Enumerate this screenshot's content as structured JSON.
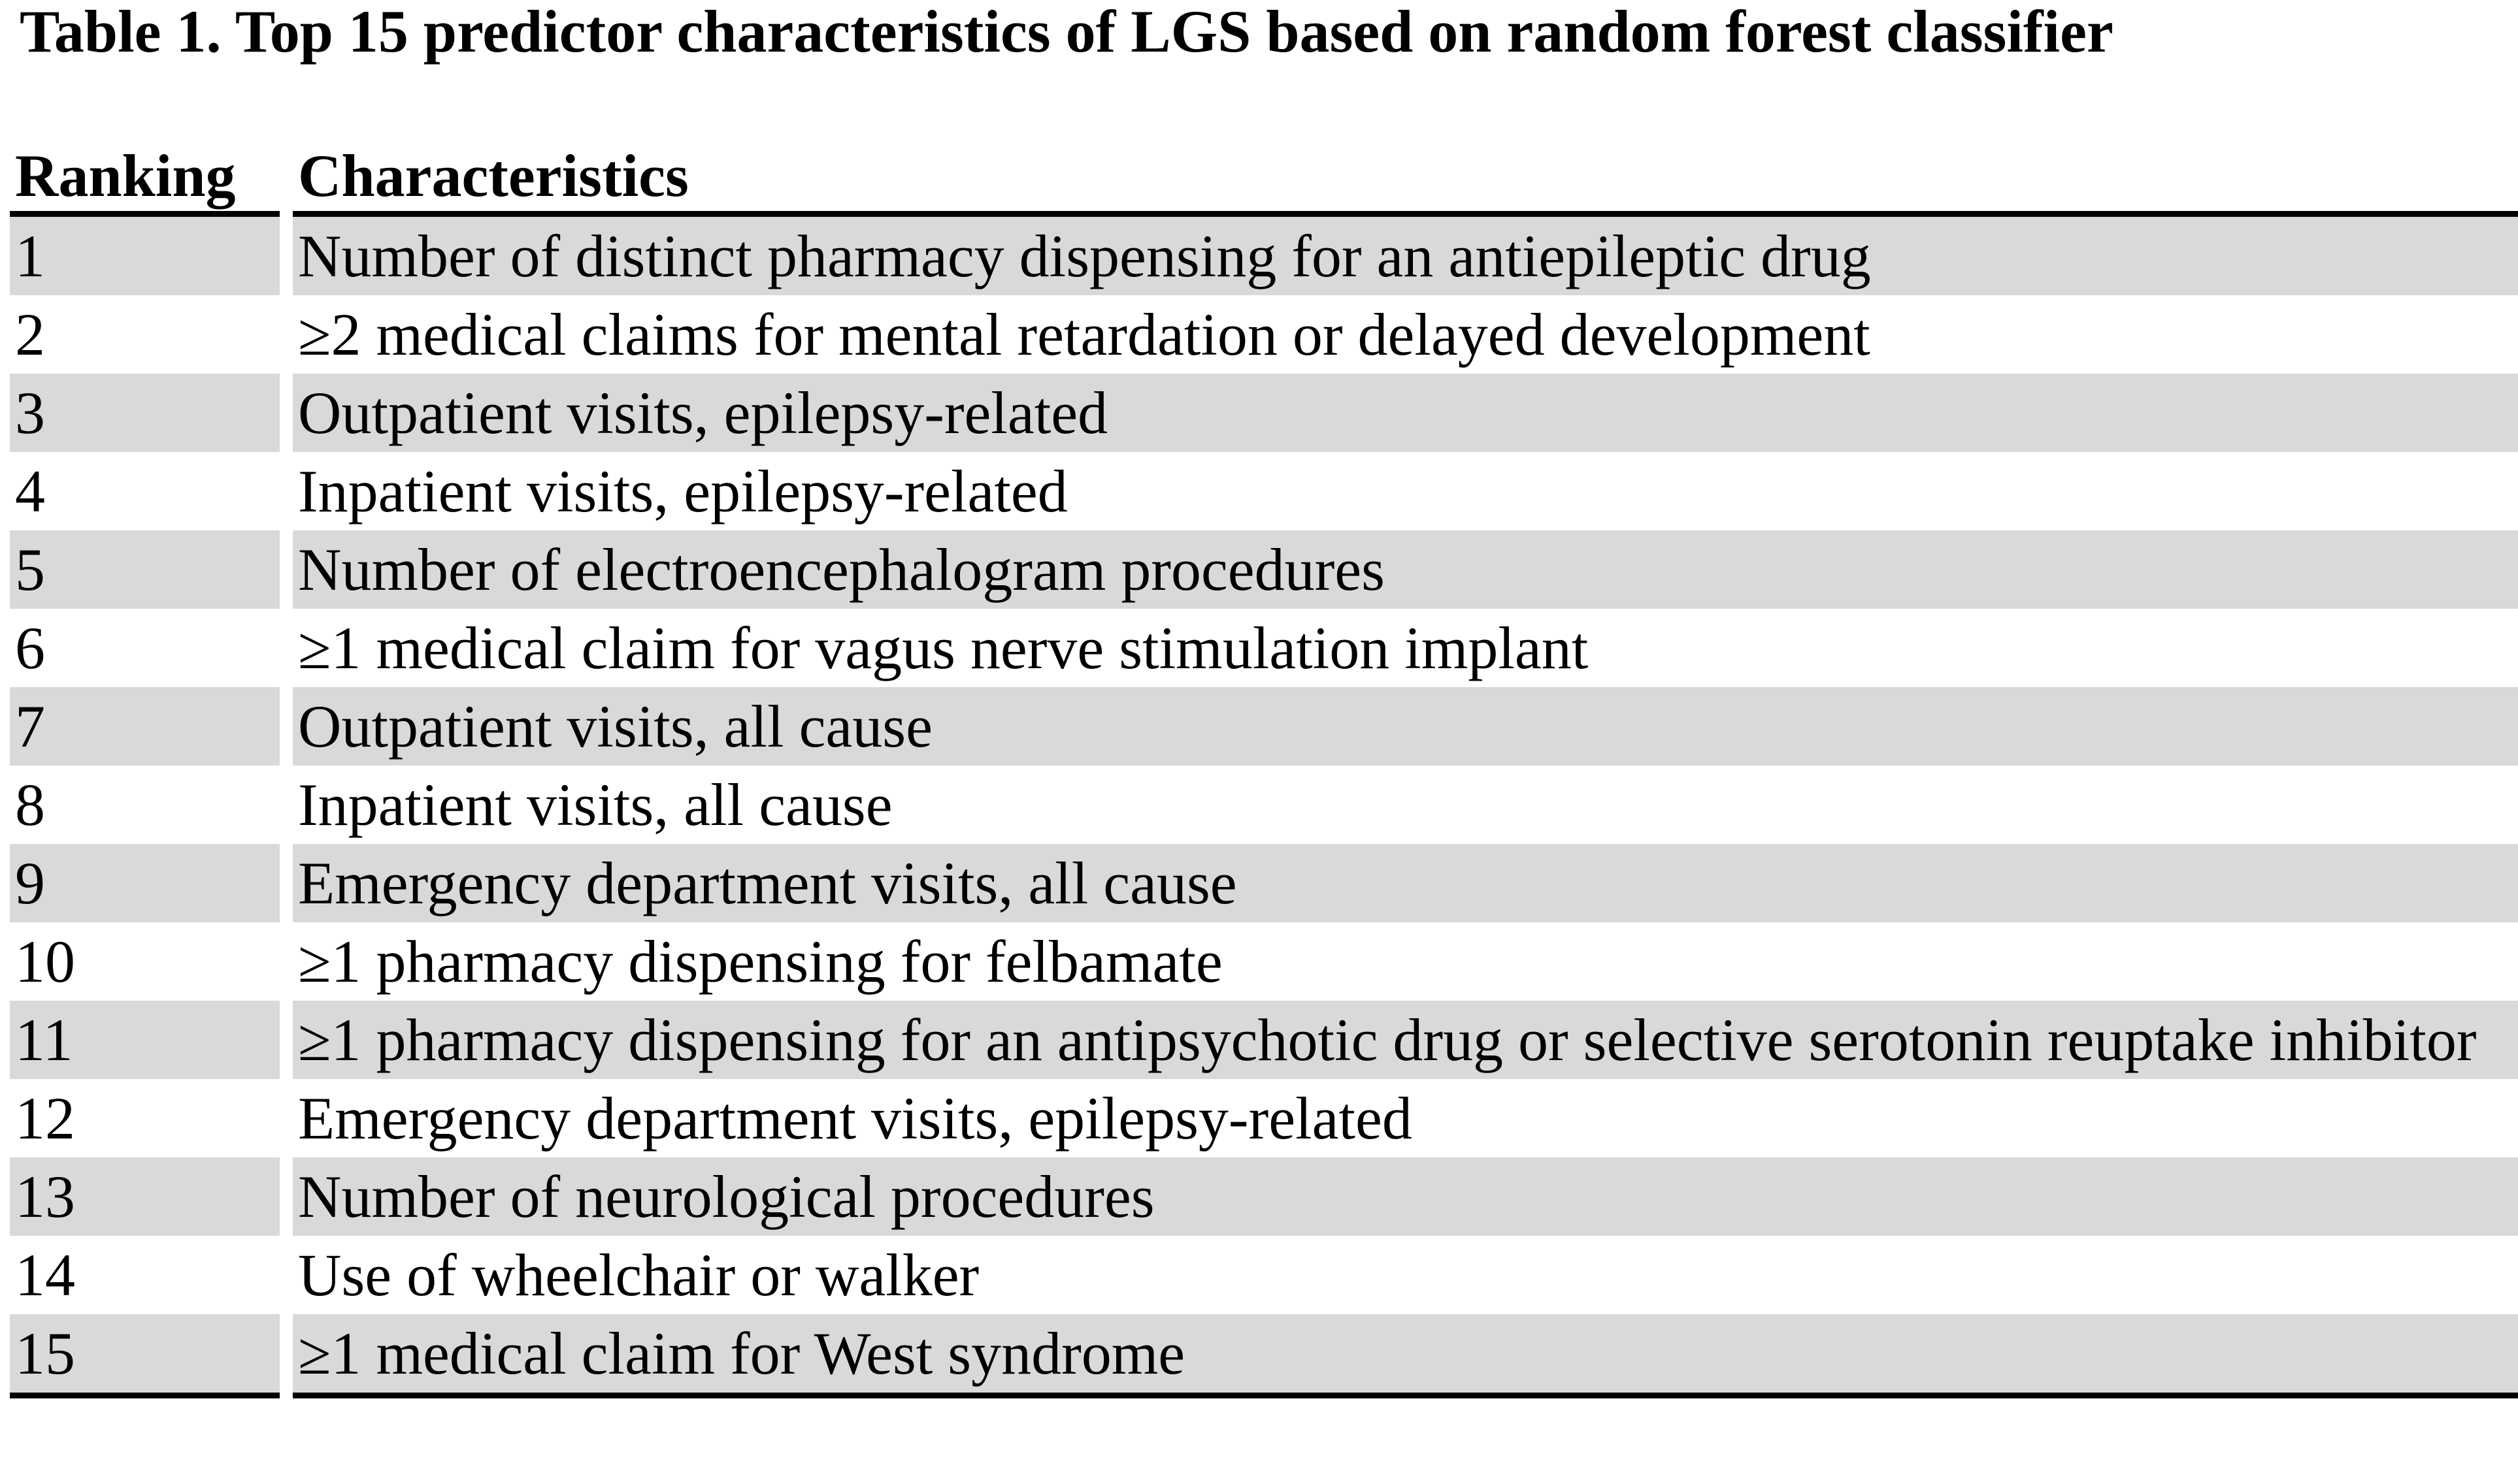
{
  "theme": {
    "background_color": "#ffffff",
    "stripe_color": "#d9d9d9",
    "rule_color": "#000000",
    "text_color": "#000000"
  },
  "title": "Table 1. Top 15 predictor characteristics of LGS based on random forest classifier",
  "table": {
    "columns": [
      "Ranking",
      "Characteristics"
    ],
    "rows": [
      {
        "rank": "1",
        "characteristic": "Number of distinct pharmacy dispensing for an antiepileptic drug"
      },
      {
        "rank": "2",
        "characteristic": "≥2 medical claims for mental retardation or delayed development"
      },
      {
        "rank": "3",
        "characteristic": "Outpatient visits, epilepsy-related"
      },
      {
        "rank": "4",
        "characteristic": "Inpatient visits, epilepsy-related"
      },
      {
        "rank": "5",
        "characteristic": "Number of electroencephalogram procedures"
      },
      {
        "rank": "6",
        "characteristic": "≥1 medical claim for vagus nerve stimulation implant"
      },
      {
        "rank": "7",
        "characteristic": "Outpatient visits, all cause"
      },
      {
        "rank": "8",
        "characteristic": "Inpatient visits, all cause"
      },
      {
        "rank": "9",
        "characteristic": "Emergency department visits, all cause"
      },
      {
        "rank": "10",
        "characteristic": "≥1 pharmacy dispensing for felbamate"
      },
      {
        "rank": "11",
        "characteristic": "≥1 pharmacy dispensing for an antipsychotic drug or selective serotonin reuptake inhibitor"
      },
      {
        "rank": "12",
        "characteristic": "Emergency department visits, epilepsy-related"
      },
      {
        "rank": "13",
        "characteristic": "Number of neurological procedures"
      },
      {
        "rank": "14",
        "characteristic": "Use of wheelchair or walker"
      },
      {
        "rank": "15",
        "characteristic": "≥1 medical claim for West syndrome"
      }
    ]
  }
}
